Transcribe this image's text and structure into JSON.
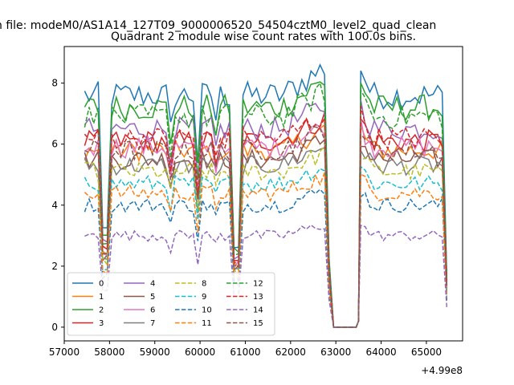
{
  "chart_data": {
    "type": "line",
    "suptitle": "n file: modeM0/AS1A14_127T09_9000006520_54504cztM0_level2_quad_clean",
    "title": "Quadrant 2 module wise count rates with 100.0s bins.",
    "xlabel": "",
    "ylabel": "",
    "x_offset_label": "+4.99e8",
    "xlim": [
      57000,
      65800
    ],
    "ylim": [
      -0.45,
      9.2
    ],
    "xticks": [
      57000,
      58000,
      59000,
      60000,
      61000,
      62000,
      63000,
      64000,
      65000
    ],
    "yticks": [
      0,
      2,
      4,
      6,
      8
    ],
    "legend_location": "lower left",
    "legend_columns": 4,
    "segments": [
      {
        "x_start": 57450,
        "x_end": 62750,
        "step": 100
      },
      {
        "gap": [
          62750,
          63550
        ]
      },
      {
        "x_start": 63550,
        "x_end": 65450,
        "step": 100
      }
    ],
    "series": [
      {
        "name": "0",
        "color": "#1f77b4",
        "dash": "solid",
        "level": 7.6
      },
      {
        "name": "1",
        "color": "#ff7f0e",
        "dash": "solid",
        "level": 5.8
      },
      {
        "name": "2",
        "color": "#2ca02c",
        "dash": "solid",
        "level": 7.2
      },
      {
        "name": "3",
        "color": "#d62728",
        "dash": "solid",
        "level": 6.1
      },
      {
        "name": "4",
        "color": "#9467bd",
        "dash": "solid",
        "level": 6.5
      },
      {
        "name": "5",
        "color": "#8c564b",
        "dash": "solid",
        "level": 5.5
      },
      {
        "name": "6",
        "color": "#e377c2",
        "dash": "solid",
        "level": 5.9
      },
      {
        "name": "7",
        "color": "#7f7f7f",
        "dash": "solid",
        "level": 5.3
      },
      {
        "name": "8",
        "color": "#bcbd22",
        "dash": "dashed",
        "level": 5.1
      },
      {
        "name": "9",
        "color": "#17becf",
        "dash": "dashed",
        "level": 4.7
      },
      {
        "name": "10",
        "color": "#1f77b4",
        "dash": "dashed",
        "level": 4.0
      },
      {
        "name": "11",
        "color": "#ff7f0e",
        "dash": "dashed",
        "level": 4.4
      },
      {
        "name": "12",
        "color": "#2ca02c",
        "dash": "dashed",
        "level": 6.9
      },
      {
        "name": "13",
        "color": "#d62728",
        "dash": "dashed",
        "level": 6.2
      },
      {
        "name": "14",
        "color": "#9467bd",
        "dash": "dashed",
        "level": 3.0
      },
      {
        "name": "15",
        "color": "#8c564b",
        "dash": "dashed",
        "level": 5.8
      }
    ]
  }
}
